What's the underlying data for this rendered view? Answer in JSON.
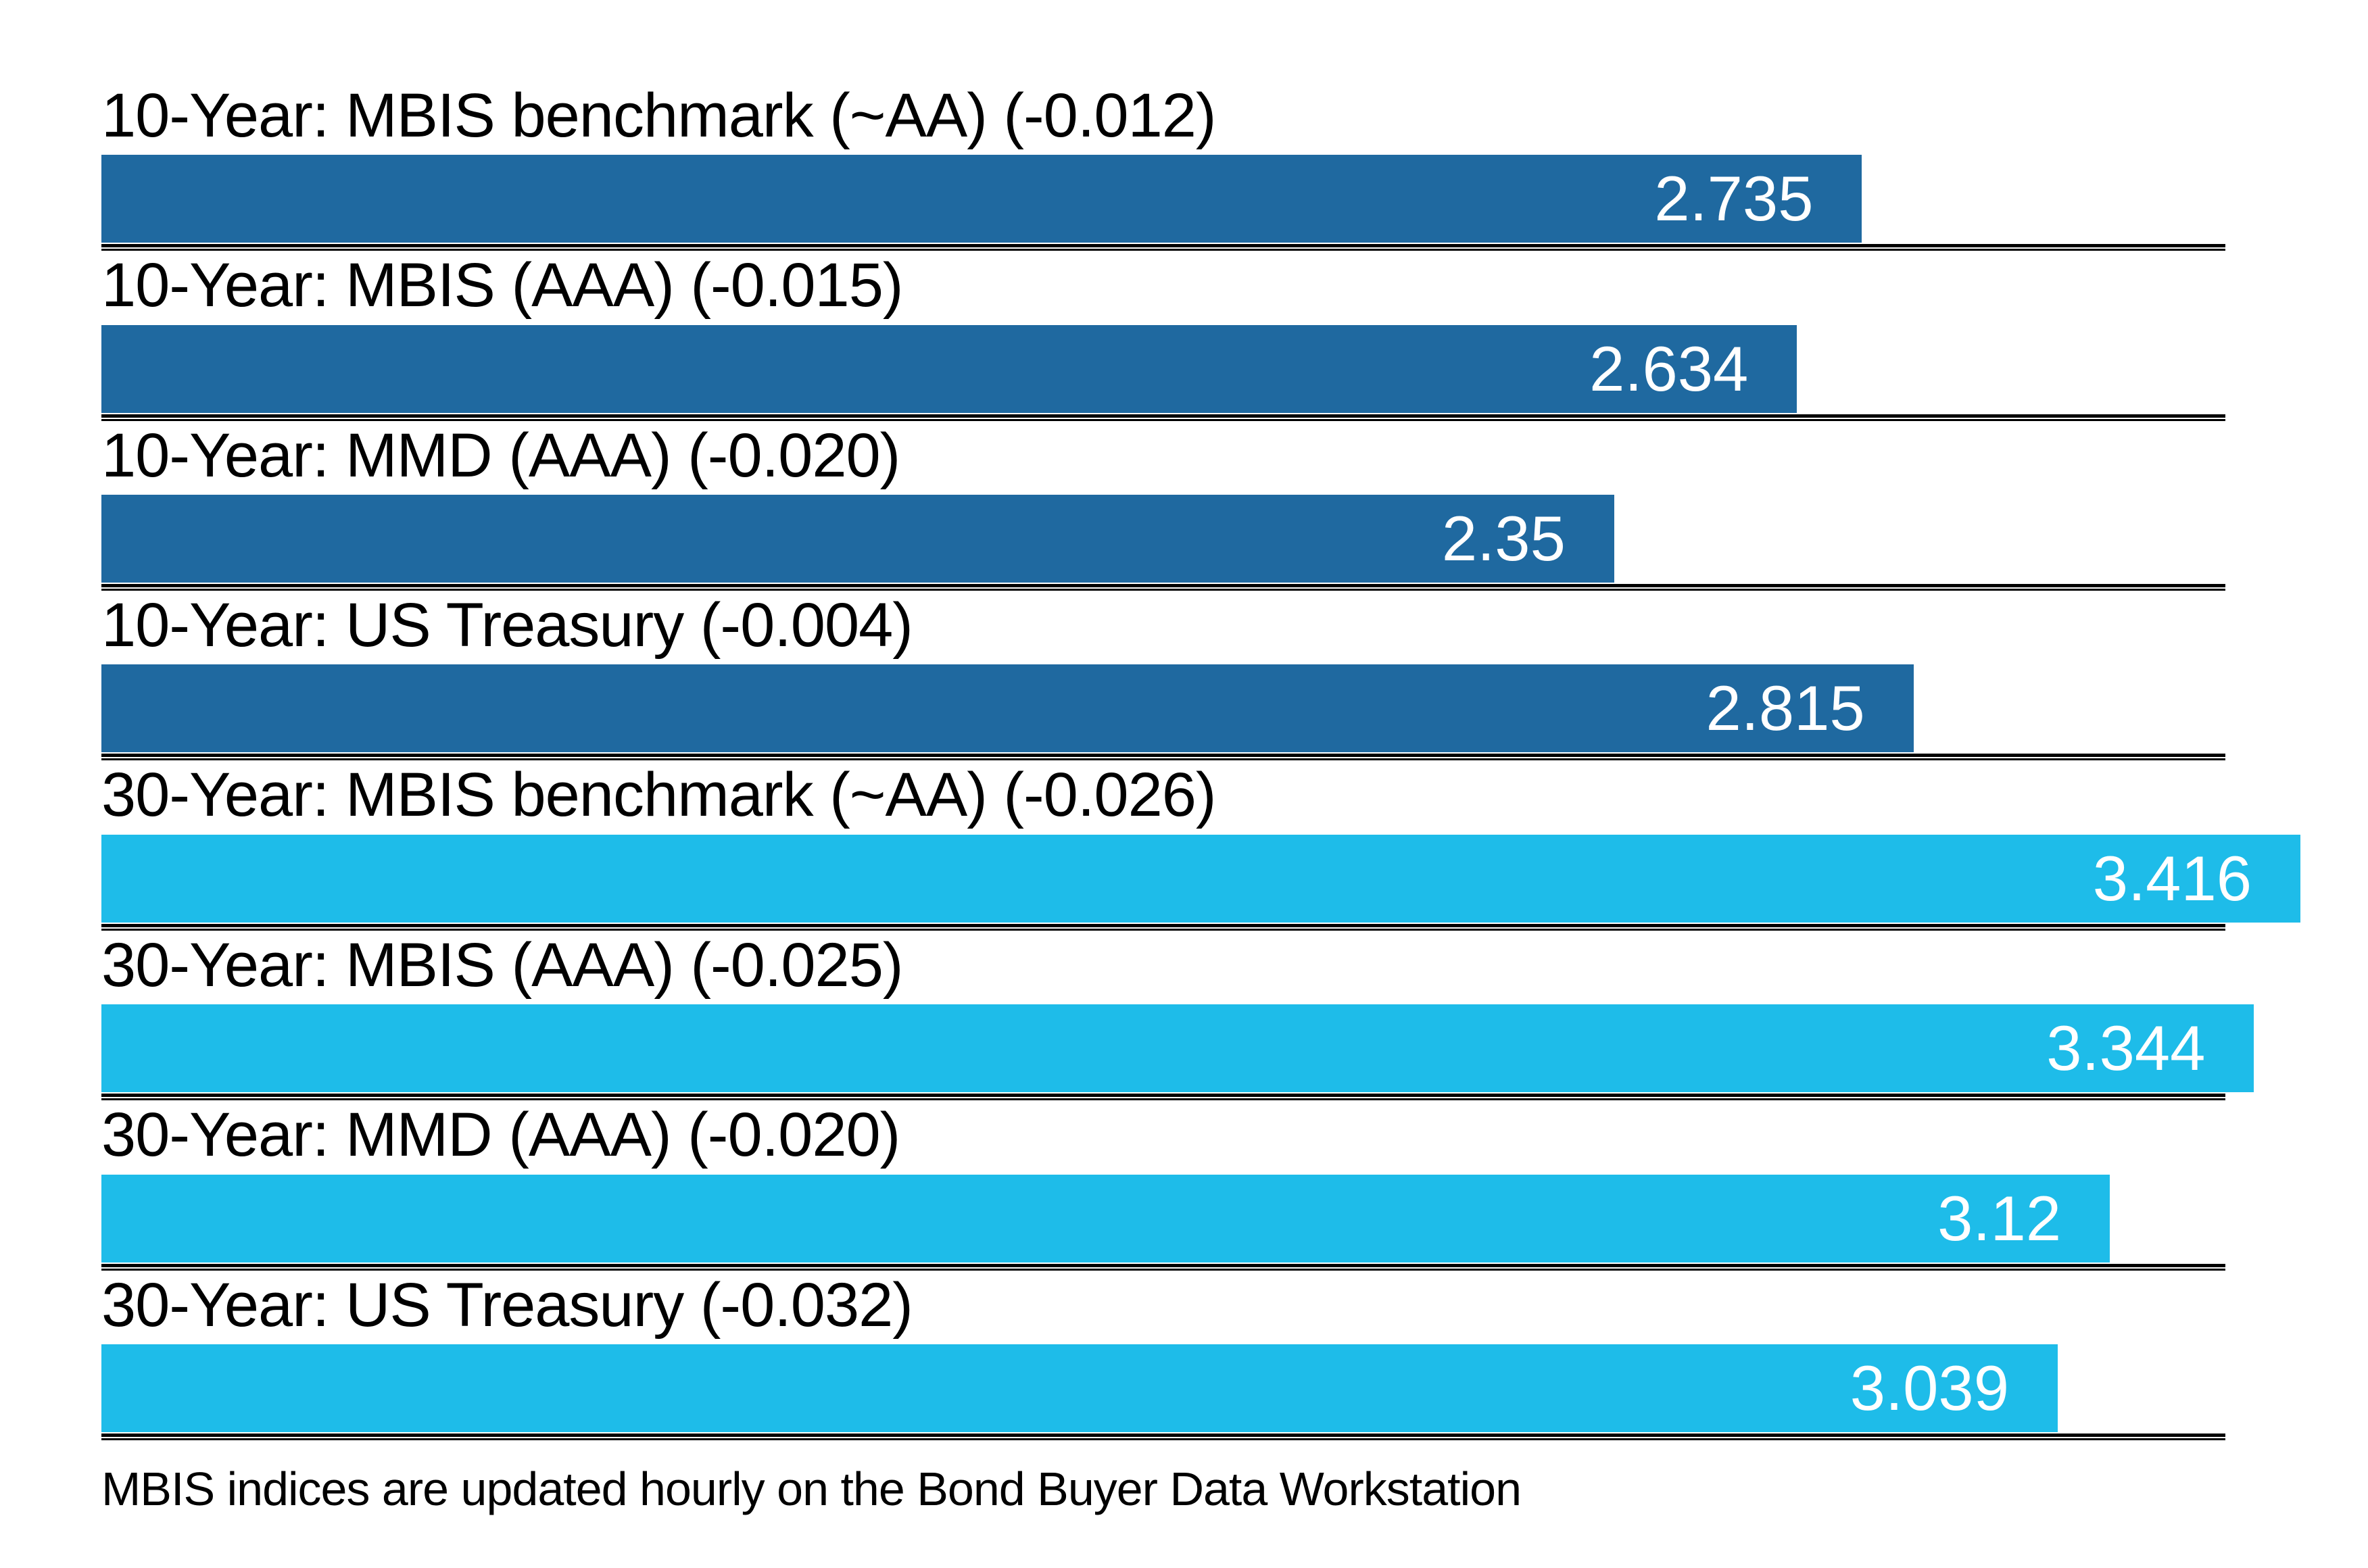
{
  "colors": {
    "bar_10_year": "#1f69a0",
    "bar_30_year": "#1ebce9",
    "label_text": "#000000",
    "value_text": "#ffffff",
    "axis_line": "#000000",
    "background": "#ffffff"
  },
  "chart_data": {
    "type": "bar",
    "orientation": "horizontal",
    "xlim": [
      0,
      3.416
    ],
    "grid": false,
    "legend": false,
    "rows": [
      {
        "label": "10-Year: MBIS benchmark (~AA) (-0.012)",
        "value": 2.735,
        "display_value": "2.735",
        "group": "10-year"
      },
      {
        "label": "10-Year: MBIS (AAA) (-0.015)",
        "value": 2.634,
        "display_value": "2.634",
        "group": "10-year"
      },
      {
        "label": "10-Year: MMD (AAA) (-0.020)",
        "value": 2.35,
        "display_value": "2.35",
        "group": "10-year"
      },
      {
        "label": "10-Year: US Treasury (-0.004)",
        "value": 2.815,
        "display_value": "2.815",
        "group": "10-year"
      },
      {
        "label": "30-Year: MBIS benchmark (~AA) (-0.026)",
        "value": 3.416,
        "display_value": "3.416",
        "group": "30-year"
      },
      {
        "label": "30-Year: MBIS (AAA) (-0.025)",
        "value": 3.344,
        "display_value": "3.344",
        "group": "30-year"
      },
      {
        "label": "30-Year: MMD (AAA) (-0.020)",
        "value": 3.12,
        "display_value": "3.12",
        "group": "30-year"
      },
      {
        "label": "30-Year: US Treasury (-0.032)",
        "value": 3.039,
        "display_value": "3.039",
        "group": "30-year"
      }
    ],
    "footnote": "MBIS indices are updated hourly on the Bond Buyer Data Workstation"
  }
}
